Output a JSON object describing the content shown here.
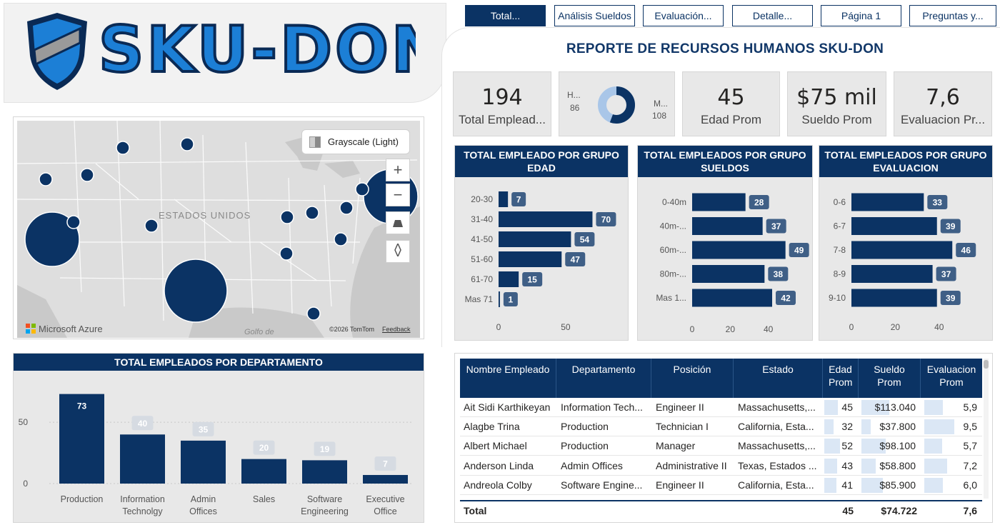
{
  "header": {
    "logo_text": "SKU-DON",
    "report_title": "REPORTE DE RECURSOS HUMANOS SKU-DON"
  },
  "tabs": [
    {
      "label": "Total...",
      "active": true
    },
    {
      "label": "Análisis Sueldos",
      "active": false
    },
    {
      "label": "Evaluación...",
      "active": false
    },
    {
      "label": "Detalle...",
      "active": false
    },
    {
      "label": "Página 1",
      "active": false
    },
    {
      "label": "Preguntas y...",
      "active": false
    }
  ],
  "kpis": {
    "total": {
      "value": "194",
      "label": "Total Emplead..."
    },
    "gender": {
      "left_label": "H...",
      "left_value": "86",
      "right_label": "M...",
      "right_value": "108",
      "h": 86,
      "m": 108
    },
    "edad": {
      "value": "45",
      "label": "Edad Prom"
    },
    "sueldo": {
      "value": "$75 mil",
      "label": "Sueldo Prom"
    },
    "evaluacion": {
      "value": "7,6",
      "label": "Evaluacion Pr..."
    }
  },
  "map": {
    "style_label": "Grayscale (Light)",
    "country_label": "ESTADOS UNIDOS",
    "gulf_label": "Golfo de",
    "brand": "Microsoft Azure",
    "copyright": "©2026 TomTom",
    "feedback": "Feedback",
    "zoom_in": "+",
    "zoom_out": "−"
  },
  "charts": {
    "edad": {
      "title": "TOTAL EMPLEADO POR GRUPO EDAD",
      "type": "bar",
      "categories": [
        "20-30",
        "31-40",
        "41-50",
        "51-60",
        "61-70",
        "Mas 71"
      ],
      "values": [
        7,
        70,
        54,
        47,
        15,
        1
      ],
      "xticks": [
        "0",
        "50"
      ],
      "xlim": [
        0,
        90
      ]
    },
    "sueldos": {
      "title": "TOTAL EMPLEADOS POR GRUPO SUELDOS",
      "type": "bar",
      "categories": [
        "0-40m",
        "40m-...",
        "60m-...",
        "80m-...",
        "Mas 1..."
      ],
      "values": [
        28,
        37,
        49,
        38,
        42
      ],
      "xticks": [
        "0",
        "20",
        "40"
      ],
      "xlim": [
        0,
        60
      ]
    },
    "evaluacion": {
      "title": "TOTAL EMPLEADOS POR GRUPO EVALUACION",
      "type": "bar",
      "categories": [
        "0-6",
        "6-7",
        "7-8",
        "8-9",
        "9-10"
      ],
      "values": [
        33,
        39,
        46,
        37,
        39
      ],
      "xticks": [
        "0",
        "20",
        "40"
      ],
      "xlim": [
        0,
        57
      ]
    },
    "departamento": {
      "title": "TOTAL EMPLEADOS POR DEPARTAMENTO",
      "type": "bar",
      "categories": [
        "Production",
        "Information Technolgy",
        "Admin Offices",
        "Sales",
        "Software Engineering",
        "Executive Office"
      ],
      "values": [
        73,
        40,
        35,
        20,
        19,
        7
      ],
      "yticks": [
        "0",
        "50"
      ],
      "ylim": [
        0,
        85
      ]
    }
  },
  "table": {
    "columns": [
      "Nombre Empleado",
      "Departamento",
      "Posición",
      "Estado",
      "Edad Prom",
      "Sueldo Prom",
      "Evaluacion Prom"
    ],
    "rows": [
      {
        "nombre": "Ait Sidi Karthikeyan",
        "depto": "Information Tech...",
        "posicion": "Engineer II",
        "estado": "Massachusetts,...",
        "edad": "45",
        "sueldo": "$113.040",
        "eval": "5,9",
        "edad_n": 45,
        "sueldo_n": 113040,
        "eval_n": 5.9
      },
      {
        "nombre": "Alagbe Trina",
        "depto": "Production",
        "posicion": "Technician I",
        "estado": "California, Esta...",
        "edad": "32",
        "sueldo": "$37.800",
        "eval": "9,5",
        "edad_n": 32,
        "sueldo_n": 37800,
        "eval_n": 9.5
      },
      {
        "nombre": "Albert Michael",
        "depto": "Production",
        "posicion": "Manager",
        "estado": "Massachusetts,...",
        "edad": "52",
        "sueldo": "$98.100",
        "eval": "5,7",
        "edad_n": 52,
        "sueldo_n": 98100,
        "eval_n": 5.7
      },
      {
        "nombre": "Anderson Linda",
        "depto": "Admin Offices",
        "posicion": "Administrative II",
        "estado": "Texas, Estados ...",
        "edad": "43",
        "sueldo": "$58.800",
        "eval": "7,2",
        "edad_n": 43,
        "sueldo_n": 58800,
        "eval_n": 7.2
      },
      {
        "nombre": "Andreola Colby",
        "depto": "Software Engine...",
        "posicion": "Engineer II",
        "estado": "California, Esta...",
        "edad": "41",
        "sueldo": "$85.900",
        "eval": "6,0",
        "edad_n": 41,
        "sueldo_n": 85900,
        "eval_n": 6.0
      }
    ],
    "total": {
      "label": "Total",
      "edad": "45",
      "sueldo": "$74.722",
      "eval": "7,6"
    }
  },
  "colors": {
    "navy": "#0b3364",
    "bar": "#0b3364",
    "label_box": "#3f5f86",
    "accent_blue": "#1c7fd6",
    "light_blue": "#a9c6e8"
  }
}
